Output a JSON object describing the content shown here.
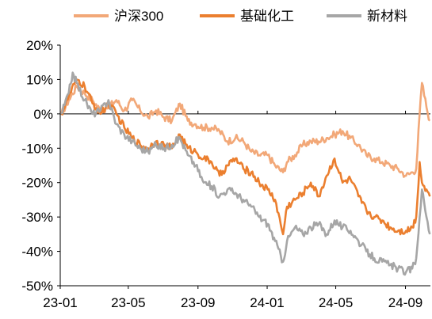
{
  "chart_data": {
    "type": "line",
    "title": "",
    "xlabel": "",
    "ylabel": "",
    "ylim": [
      -50,
      20
    ],
    "yticks": [
      20,
      10,
      0,
      -10,
      -20,
      -30,
      -40,
      -50
    ],
    "ytick_labels": [
      "20%",
      "10%",
      "0%",
      "-10%",
      "-20%",
      "-30%",
      "-40%",
      "-50%"
    ],
    "xlim": [
      "2023-01-01",
      "2024-10-15"
    ],
    "xticks": [
      "2023-01-01",
      "2023-05-01",
      "2023-09-01",
      "2024-01-01",
      "2024-05-01",
      "2024-09-01"
    ],
    "xtick_labels": [
      "23-01",
      "23-05",
      "23-09",
      "24-01",
      "24-05",
      "24-09"
    ],
    "grid": false,
    "legend_position": "top",
    "series": [
      {
        "name": "沪深300",
        "color": "#F2A878",
        "points": [
          [
            "2023-01-03",
            0
          ],
          [
            "2023-01-16",
            4
          ],
          [
            "2023-01-30",
            8
          ],
          [
            "2023-02-13",
            6
          ],
          [
            "2023-02-27",
            4
          ],
          [
            "2023-03-13",
            1
          ],
          [
            "2023-03-27",
            2
          ],
          [
            "2023-04-10",
            4
          ],
          [
            "2023-04-24",
            1
          ],
          [
            "2023-05-08",
            4
          ],
          [
            "2023-05-22",
            1
          ],
          [
            "2023-06-05",
            -1
          ],
          [
            "2023-06-19",
            1
          ],
          [
            "2023-07-03",
            -1
          ],
          [
            "2023-07-17",
            -2
          ],
          [
            "2023-07-31",
            3
          ],
          [
            "2023-08-14",
            -2
          ],
          [
            "2023-08-28",
            -3
          ],
          [
            "2023-09-11",
            -4
          ],
          [
            "2023-09-25",
            -4
          ],
          [
            "2023-10-09",
            -5
          ],
          [
            "2023-10-23",
            -8
          ],
          [
            "2023-11-06",
            -7
          ],
          [
            "2023-11-20",
            -8
          ],
          [
            "2023-12-04",
            -11
          ],
          [
            "2023-12-18",
            -12
          ],
          [
            "2024-01-02",
            -12
          ],
          [
            "2024-01-15",
            -15
          ],
          [
            "2024-01-29",
            -17
          ],
          [
            "2024-02-05",
            -14
          ],
          [
            "2024-02-19",
            -12
          ],
          [
            "2024-03-04",
            -9
          ],
          [
            "2024-03-18",
            -8
          ],
          [
            "2024-04-01",
            -8
          ],
          [
            "2024-04-15",
            -7
          ],
          [
            "2024-04-29",
            -6
          ],
          [
            "2024-05-13",
            -5
          ],
          [
            "2024-05-27",
            -7
          ],
          [
            "2024-06-10",
            -9
          ],
          [
            "2024-06-24",
            -12
          ],
          [
            "2024-07-08",
            -13
          ],
          [
            "2024-07-22",
            -14
          ],
          [
            "2024-08-05",
            -15
          ],
          [
            "2024-08-19",
            -16
          ],
          [
            "2024-09-02",
            -18
          ],
          [
            "2024-09-13",
            -17
          ],
          [
            "2024-09-20",
            -16
          ],
          [
            "2024-09-26",
            0
          ],
          [
            "2024-09-30",
            9
          ],
          [
            "2024-10-08",
            2
          ],
          [
            "2024-10-14",
            -2
          ]
        ]
      },
      {
        "name": "基础化工",
        "color": "#EB7F2F",
        "points": [
          [
            "2023-01-03",
            0
          ],
          [
            "2023-01-16",
            5
          ],
          [
            "2023-01-30",
            10
          ],
          [
            "2023-02-13",
            8
          ],
          [
            "2023-02-27",
            3
          ],
          [
            "2023-03-13",
            0
          ],
          [
            "2023-03-27",
            3
          ],
          [
            "2023-04-10",
            0
          ],
          [
            "2023-04-24",
            -4
          ],
          [
            "2023-05-08",
            -7
          ],
          [
            "2023-05-22",
            -9
          ],
          [
            "2023-06-05",
            -10
          ],
          [
            "2023-06-19",
            -8
          ],
          [
            "2023-07-03",
            -9
          ],
          [
            "2023-07-17",
            -10
          ],
          [
            "2023-07-31",
            -6
          ],
          [
            "2023-08-14",
            -10
          ],
          [
            "2023-08-28",
            -11
          ],
          [
            "2023-09-11",
            -13
          ],
          [
            "2023-09-25",
            -14
          ],
          [
            "2023-10-09",
            -18
          ],
          [
            "2023-10-23",
            -15
          ],
          [
            "2023-11-06",
            -13
          ],
          [
            "2023-11-20",
            -16
          ],
          [
            "2023-12-04",
            -17
          ],
          [
            "2023-12-18",
            -20
          ],
          [
            "2024-01-02",
            -22
          ],
          [
            "2024-01-15",
            -25
          ],
          [
            "2024-01-29",
            -35
          ],
          [
            "2024-02-05",
            -27
          ],
          [
            "2024-02-19",
            -25
          ],
          [
            "2024-03-04",
            -23
          ],
          [
            "2024-03-18",
            -20
          ],
          [
            "2024-04-01",
            -24
          ],
          [
            "2024-04-15",
            -18
          ],
          [
            "2024-04-29",
            -13
          ],
          [
            "2024-05-13",
            -20
          ],
          [
            "2024-05-27",
            -19
          ],
          [
            "2024-06-10",
            -24
          ],
          [
            "2024-06-24",
            -28
          ],
          [
            "2024-07-08",
            -30
          ],
          [
            "2024-07-22",
            -31
          ],
          [
            "2024-08-05",
            -33
          ],
          [
            "2024-08-19",
            -34
          ],
          [
            "2024-09-02",
            -34
          ],
          [
            "2024-09-13",
            -33
          ],
          [
            "2024-09-20",
            -30
          ],
          [
            "2024-09-26",
            -14
          ],
          [
            "2024-09-30",
            -20
          ],
          [
            "2024-10-08",
            -22
          ],
          [
            "2024-10-14",
            -24
          ]
        ]
      },
      {
        "name": "新材料",
        "color": "#A6A6A6",
        "points": [
          [
            "2023-01-03",
            0
          ],
          [
            "2023-01-16",
            6
          ],
          [
            "2023-01-23",
            12
          ],
          [
            "2023-01-30",
            9
          ],
          [
            "2023-02-13",
            4
          ],
          [
            "2023-02-27",
            0
          ],
          [
            "2023-03-13",
            1
          ],
          [
            "2023-03-27",
            4
          ],
          [
            "2023-04-10",
            -3
          ],
          [
            "2023-04-24",
            -6
          ],
          [
            "2023-05-08",
            -8
          ],
          [
            "2023-05-22",
            -10
          ],
          [
            "2023-06-05",
            -11
          ],
          [
            "2023-06-19",
            -9
          ],
          [
            "2023-07-03",
            -10
          ],
          [
            "2023-07-17",
            -9
          ],
          [
            "2023-07-31",
            -7
          ],
          [
            "2023-08-14",
            -12
          ],
          [
            "2023-08-28",
            -15
          ],
          [
            "2023-09-11",
            -20
          ],
          [
            "2023-09-25",
            -21
          ],
          [
            "2023-10-09",
            -24
          ],
          [
            "2023-10-23",
            -22
          ],
          [
            "2023-11-06",
            -23
          ],
          [
            "2023-11-20",
            -25
          ],
          [
            "2023-12-04",
            -27
          ],
          [
            "2023-12-18",
            -30
          ],
          [
            "2024-01-02",
            -32
          ],
          [
            "2024-01-15",
            -37
          ],
          [
            "2024-01-29",
            -43
          ],
          [
            "2024-02-05",
            -37
          ],
          [
            "2024-02-19",
            -33
          ],
          [
            "2024-03-04",
            -35
          ],
          [
            "2024-03-18",
            -33
          ],
          [
            "2024-04-01",
            -32
          ],
          [
            "2024-04-15",
            -35
          ],
          [
            "2024-04-29",
            -31
          ],
          [
            "2024-05-13",
            -33
          ],
          [
            "2024-05-27",
            -34
          ],
          [
            "2024-06-10",
            -37
          ],
          [
            "2024-06-24",
            -40
          ],
          [
            "2024-07-08",
            -42
          ],
          [
            "2024-07-22",
            -43
          ],
          [
            "2024-08-05",
            -44
          ],
          [
            "2024-08-19",
            -45
          ],
          [
            "2024-09-02",
            -46
          ],
          [
            "2024-09-13",
            -45
          ],
          [
            "2024-09-20",
            -42
          ],
          [
            "2024-09-26",
            -30
          ],
          [
            "2024-09-30",
            -22
          ],
          [
            "2024-10-08",
            -30
          ],
          [
            "2024-10-14",
            -35
          ]
        ]
      }
    ]
  }
}
